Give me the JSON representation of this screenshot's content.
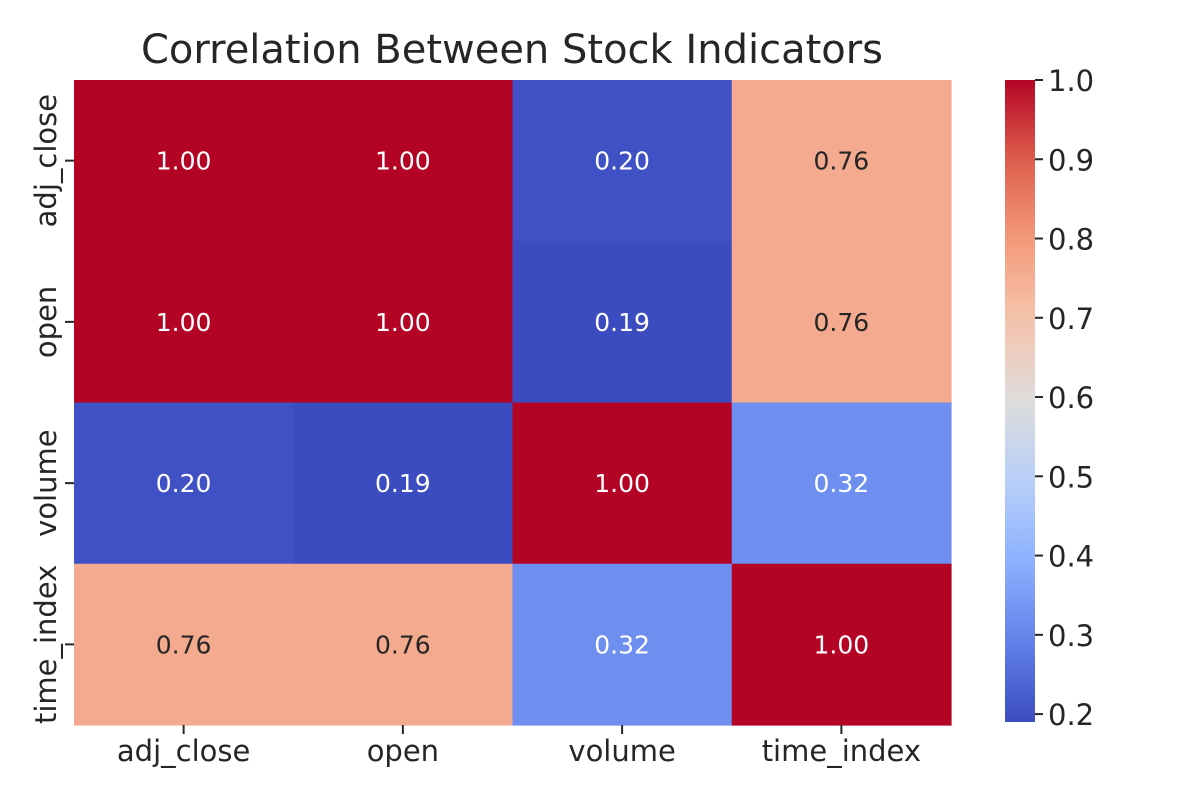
{
  "chart_data": {
    "type": "heatmap",
    "title": "Correlation Between Stock Indicators",
    "x_labels": [
      "adj_close",
      "open",
      "volume",
      "time_index"
    ],
    "y_labels": [
      "adj_close",
      "open",
      "volume",
      "time_index"
    ],
    "values": [
      [
        1.0,
        1.0,
        0.2,
        0.76
      ],
      [
        1.0,
        1.0,
        0.19,
        0.76
      ],
      [
        0.2,
        0.19,
        1.0,
        0.32
      ],
      [
        0.76,
        0.76,
        0.32,
        1.0
      ]
    ],
    "cell_labels": [
      [
        "1.00",
        "1.00",
        "0.20",
        "0.76"
      ],
      [
        "1.00",
        "1.00",
        "0.19",
        "0.76"
      ],
      [
        "0.20",
        "0.19",
        "1.00",
        "0.32"
      ],
      [
        "0.76",
        "0.76",
        "0.32",
        "1.00"
      ]
    ],
    "colormap": "coolwarm",
    "colorbar": {
      "min": 0.19,
      "max": 1.0,
      "ticks": [
        0.2,
        0.3,
        0.4,
        0.5,
        0.6,
        0.7,
        0.8,
        0.9,
        1.0
      ],
      "tick_labels": [
        "0.2",
        "0.3",
        "0.4",
        "0.5",
        "0.6",
        "0.7",
        "0.8",
        "0.9",
        "1.0"
      ]
    }
  }
}
